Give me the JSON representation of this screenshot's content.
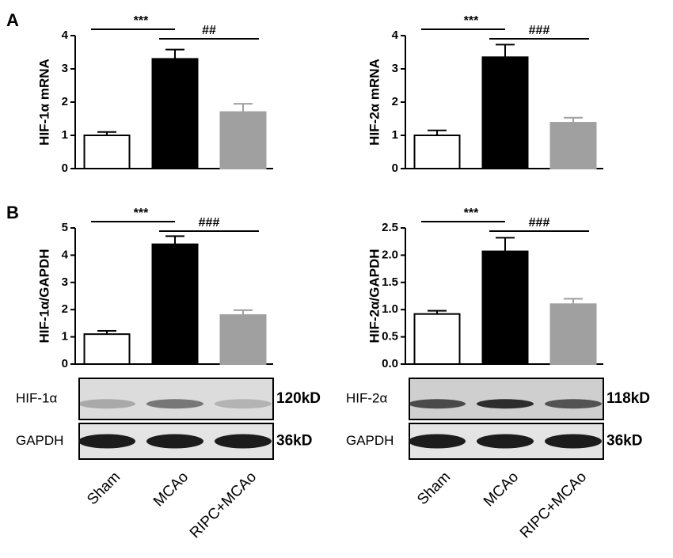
{
  "chart_data": [
    {
      "type": "bar",
      "label": "A",
      "ylabel": "HIF-1α mRNA",
      "categories": [
        null,
        null,
        null
      ],
      "values": [
        1.0,
        3.3,
        1.7
      ],
      "errors": [
        0.1,
        0.28,
        0.25
      ],
      "colors": [
        "#ffffff",
        "#000000",
        "#a0a0a0"
      ],
      "ylim": [
        0,
        4
      ],
      "yticks": [
        0,
        1,
        2,
        3,
        4
      ],
      "annotations": [
        "***",
        "##"
      ]
    },
    {
      "type": "bar",
      "ylabel": "HIF-2α mRNA",
      "categories": [
        null,
        null,
        null
      ],
      "values": [
        1.0,
        3.35,
        1.38
      ],
      "errors": [
        0.15,
        0.38,
        0.15
      ],
      "colors": [
        "#ffffff",
        "#000000",
        "#a0a0a0"
      ],
      "ylim": [
        0,
        4
      ],
      "yticks": [
        0,
        1,
        2,
        3,
        4
      ],
      "annotations": [
        "***",
        "###"
      ]
    },
    {
      "type": "bar",
      "label": "B",
      "ylabel": "HIF-1α/GAPDH",
      "categories": [
        "Sham",
        "MCAo",
        "RIPC+MCAo"
      ],
      "values": [
        1.1,
        4.4,
        1.8
      ],
      "errors": [
        0.12,
        0.3,
        0.18
      ],
      "colors": [
        "#ffffff",
        "#000000",
        "#a0a0a0"
      ],
      "ylim": [
        0,
        5
      ],
      "yticks": [
        0,
        1,
        2,
        3,
        4,
        5
      ],
      "annotations": [
        "***",
        "###"
      ],
      "blots": [
        {
          "name": "HIF-1α",
          "size": "120kD"
        },
        {
          "name": "GAPDH",
          "size": "36kD"
        }
      ]
    },
    {
      "type": "bar",
      "ylabel": "HIF-2α/GAPDH",
      "categories": [
        "Sham",
        "MCAo",
        "RIPC+MCAo"
      ],
      "values": [
        0.92,
        2.07,
        1.1
      ],
      "errors": [
        0.06,
        0.25,
        0.1
      ],
      "colors": [
        "#ffffff",
        "#000000",
        "#a0a0a0"
      ],
      "ylim": [
        0,
        2.5
      ],
      "yticks": [
        {
          "value": 0,
          "label": "0.0"
        },
        {
          "value": 0.5,
          "label": "0.5"
        },
        {
          "value": 1,
          "label": "1.0"
        },
        {
          "value": 1.5,
          "label": "1.5"
        },
        {
          "value": 2,
          "label": "2.0"
        },
        {
          "value": 2.5,
          "label": "2.5"
        }
      ],
      "annotations": [
        "***",
        "###"
      ],
      "blots": [
        {
          "name": "HIF-2α",
          "size": "118kD"
        },
        {
          "name": "GAPDH",
          "size": "36kD"
        }
      ]
    }
  ]
}
